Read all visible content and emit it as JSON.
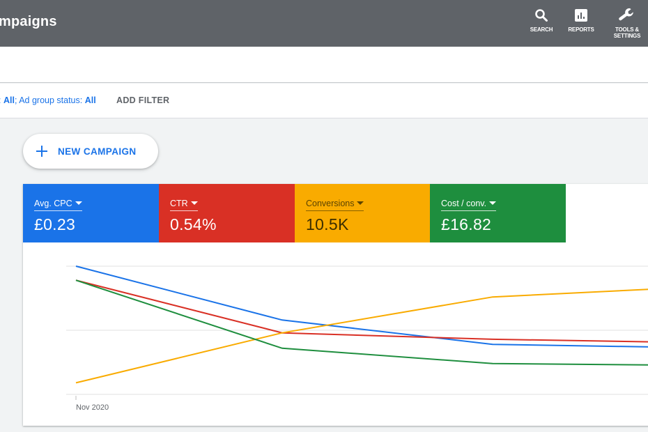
{
  "header": {
    "title": "mpaigns",
    "tools": [
      {
        "label": "SEARCH",
        "icon": "search-icon"
      },
      {
        "label": "REPORTS",
        "icon": "reports-icon"
      },
      {
        "label": "TOOLS & SETTINGS",
        "icon": "wrench-icon"
      }
    ]
  },
  "filters": {
    "prefix": ": ",
    "campaign_status_value": "All",
    "separator": "; ",
    "ad_group_status_label": "Ad group status: ",
    "ad_group_status_value": "All",
    "add_filter": "ADD FILTER"
  },
  "new_campaign": {
    "label": "NEW CAMPAIGN"
  },
  "metrics": [
    {
      "label": "Avg. CPC",
      "value": "£0.23",
      "color": "#1a73e8"
    },
    {
      "label": "CTR",
      "value": "0.54%",
      "color": "#d93025"
    },
    {
      "label": "Conversions",
      "value": "10.5K",
      "color": "#f9ab00"
    },
    {
      "label": "Cost / conv.",
      "value": "£16.82",
      "color": "#1e8e3e"
    }
  ],
  "chart_data": {
    "type": "line",
    "x": [
      "Nov 2020",
      "",
      "",
      ""
    ],
    "tick_labels": [
      "Nov 2020"
    ],
    "ylim": [
      0,
      100
    ],
    "grid": true,
    "series": [
      {
        "name": "Avg. CPC",
        "color": "#1a73e8",
        "values": [
          100,
          58,
          39,
          37
        ]
      },
      {
        "name": "CTR",
        "color": "#d93025",
        "values": [
          89,
          48,
          43,
          41
        ]
      },
      {
        "name": "Conversions",
        "color": "#f9ab00",
        "values": [
          9,
          48,
          76,
          82
        ]
      },
      {
        "name": "Cost / conv.",
        "color": "#1e8e3e",
        "values": [
          89,
          36,
          24,
          23
        ]
      }
    ]
  }
}
